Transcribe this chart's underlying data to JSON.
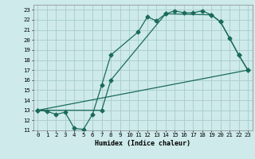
{
  "xlabel": "Humidex (Indice chaleur)",
  "bg_color": "#ceeaea",
  "grid_color": "#a8cccc",
  "line_color": "#1a6b5a",
  "xlim": [
    -0.5,
    23.5
  ],
  "ylim": [
    11,
    23.5
  ],
  "xticks": [
    0,
    1,
    2,
    3,
    4,
    5,
    6,
    7,
    8,
    9,
    10,
    11,
    12,
    13,
    14,
    15,
    16,
    17,
    18,
    19,
    20,
    21,
    22,
    23
  ],
  "yticks": [
    11,
    12,
    13,
    14,
    15,
    16,
    17,
    18,
    19,
    20,
    21,
    22,
    23
  ],
  "line1_x": [
    0,
    1,
    2,
    3,
    4,
    5,
    6,
    7,
    8,
    11,
    12,
    13,
    14,
    15,
    16,
    17,
    18,
    19,
    20,
    21,
    22,
    23
  ],
  "line1_y": [
    13,
    12.9,
    12.6,
    12.8,
    11.2,
    11.1,
    12.6,
    15.5,
    18.5,
    20.8,
    22.3,
    21.9,
    22.6,
    22.9,
    22.7,
    22.7,
    22.9,
    22.5,
    21.8,
    20.2,
    18.5,
    17.0
  ],
  "line2_x": [
    0,
    7,
    8,
    14,
    19,
    20,
    22,
    23
  ],
  "line2_y": [
    13,
    13.0,
    16.0,
    22.6,
    22.5,
    21.8,
    18.5,
    17.0
  ],
  "line3_x": [
    0,
    23
  ],
  "line3_y": [
    13,
    17.0
  ],
  "marker": "D",
  "markersize": 2.5,
  "linewidth": 0.9
}
